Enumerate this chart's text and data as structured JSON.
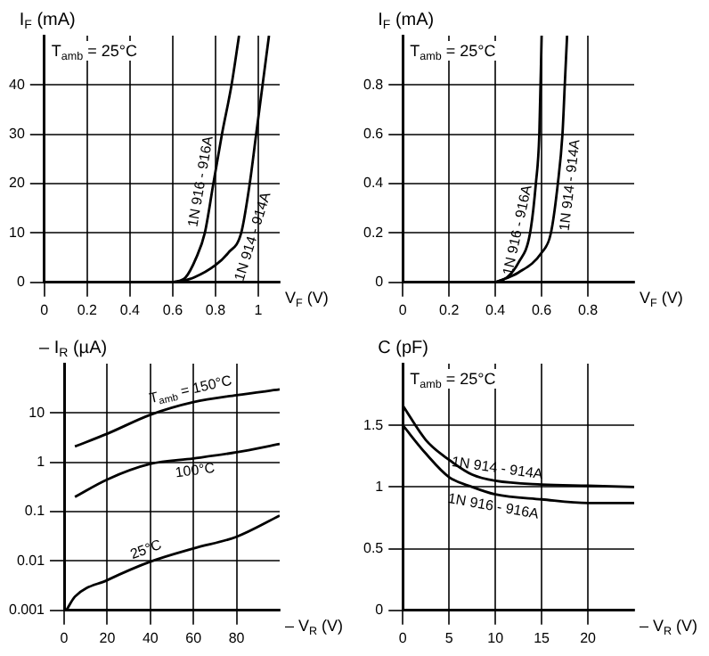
{
  "chart_data": [
    {
      "type": "line",
      "ylabel": "I$_{F}$ (mA)",
      "xlabel": "V$_{F}$ (V)",
      "annotations": [
        "T$_{amb}$ = 25°C"
      ],
      "xlim": [
        0,
        1.1
      ],
      "xticks": [
        0,
        0.2,
        0.4,
        0.6,
        0.8,
        1
      ],
      "ylim": [
        0,
        50
      ],
      "yticks": [
        0,
        10,
        20,
        30,
        40
      ],
      "grid": true,
      "series": [
        {
          "name": "1N 916 - 916A",
          "color": "#000000",
          "x": [
            0.6,
            0.66,
            0.71,
            0.75,
            0.79,
            0.83,
            0.875,
            0.91
          ],
          "values": [
            0,
            1,
            5,
            10,
            20,
            30,
            40,
            50
          ]
        },
        {
          "name": "1N 914 - 914A",
          "color": "#000000",
          "x": [
            0.62,
            0.7,
            0.8,
            0.86,
            0.92,
            0.96,
            0.99,
            1.02,
            1.05
          ],
          "values": [
            0,
            1,
            3.5,
            6,
            10,
            20,
            30,
            40,
            50
          ]
        }
      ]
    },
    {
      "type": "line",
      "ylabel": "I$_{F}$ (mA)",
      "xlabel": "V$_{F}$ (V)",
      "annotations": [
        "T$_{amb}$ = 25°C"
      ],
      "xlim": [
        0,
        1
      ],
      "xticks": [
        0,
        0.2,
        0.4,
        0.6,
        0.8
      ],
      "ylim": [
        0,
        1
      ],
      "yticks": [
        0,
        0.2,
        0.4,
        0.6,
        0.8
      ],
      "grid": true,
      "series": [
        {
          "name": "1N 916 - 916A",
          "color": "#000000",
          "x": [
            0.4,
            0.45,
            0.5,
            0.55,
            0.575,
            0.59,
            0.6
          ],
          "values": [
            0,
            0.02,
            0.08,
            0.2,
            0.4,
            0.6,
            1
          ]
        },
        {
          "name": "1N 914 - 914A",
          "color": "#000000",
          "x": [
            0.4,
            0.5,
            0.6,
            0.64,
            0.67,
            0.69,
            0.7,
            0.71
          ],
          "values": [
            0,
            0.04,
            0.12,
            0.2,
            0.4,
            0.6,
            0.8,
            1
          ]
        }
      ]
    },
    {
      "type": "line",
      "ylabel": "– I$_{R}$ (µA)",
      "xlabel": "– V$_{R}$ (V)",
      "xlim": [
        0,
        100
      ],
      "xticks": [
        0,
        20,
        40,
        60,
        80
      ],
      "ylim": [
        0.001,
        100
      ],
      "yticks": [
        0.001,
        0.01,
        0.1,
        1,
        10
      ],
      "log": "y",
      "grid": true,
      "series": [
        {
          "name": "T$_{amb}$ = 150°C",
          "color": "#000000",
          "x": [
            5,
            20,
            40,
            60,
            80,
            100
          ],
          "values": [
            2.1,
            3.8,
            9.2,
            16.6,
            23,
            30
          ]
        },
        {
          "name": "100°C",
          "color": "#000000",
          "x": [
            5,
            20,
            40,
            60,
            80,
            100
          ],
          "values": [
            0.2,
            0.45,
            0.93,
            1.2,
            1.6,
            2.35
          ]
        },
        {
          "name": "25°C",
          "color": "#000000",
          "x": [
            1,
            5,
            20,
            40,
            60,
            80,
            100
          ],
          "values": [
            0.001,
            0.0019,
            0.0041,
            0.0097,
            0.018,
            0.031,
            0.083
          ]
        }
      ]
    },
    {
      "type": "line",
      "ylabel": "C (pF)",
      "xlabel": "– V$_{R}$ (V)",
      "annotations": [
        "T$_{amb}$ = 25°C"
      ],
      "xlim": [
        0,
        25
      ],
      "xticks": [
        0,
        5,
        10,
        15,
        20
      ],
      "ylim": [
        0,
        2
      ],
      "yticks": [
        0,
        0.5,
        1,
        1.5
      ],
      "grid": true,
      "series": [
        {
          "name": "1N 914 - 914A",
          "color": "#000000",
          "x": [
            0,
            2.5,
            5,
            7.5,
            10,
            15,
            20,
            25
          ],
          "values": [
            1.66,
            1.38,
            1.22,
            1.1,
            1.05,
            1.02,
            1.01,
            1.0
          ]
        },
        {
          "name": "1N 916 - 916A",
          "color": "#000000",
          "x": [
            0,
            2.5,
            5,
            7.5,
            10,
            15,
            20,
            25
          ],
          "values": [
            1.5,
            1.27,
            1.08,
            1.0,
            0.94,
            0.9,
            0.87,
            0.87
          ]
        }
      ]
    }
  ]
}
